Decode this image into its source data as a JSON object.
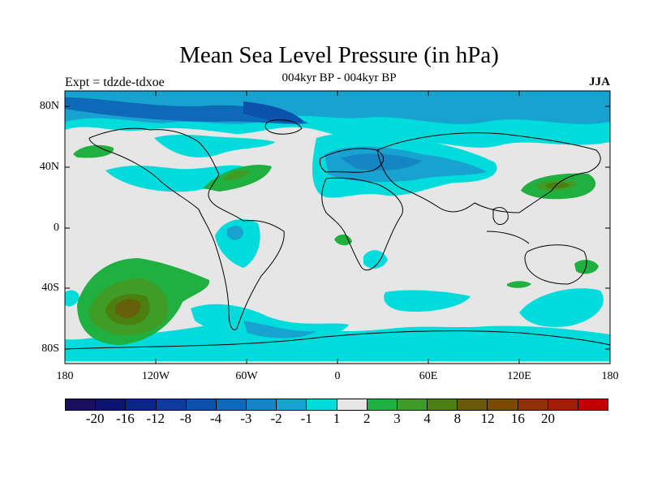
{
  "title": "Mean Sea Level Pressure (in hPa)",
  "subtitle": "004kyr BP - 004kyr BP",
  "left_label": "Expt = tdzde-tdxoe",
  "right_label": "JJA",
  "lat_ticks": [
    "80N",
    "40N",
    "0",
    "40S",
    "80S"
  ],
  "lon_ticks": [
    "180",
    "120W",
    "60W",
    "0",
    "60E",
    "120E",
    "180"
  ],
  "colorbar": {
    "colors": [
      "#1a0f5c",
      "#0b1470",
      "#0a2787",
      "#0b3c9e",
      "#0a52ab",
      "#0e6ab8",
      "#1486c4",
      "#18a2d0",
      "#00dcdc",
      "#e6e6e6",
      "#20b040",
      "#3f9d25",
      "#4b7f10",
      "#6a5a08",
      "#7a4a00",
      "#8c3206",
      "#a01e04",
      "#c20000"
    ],
    "labels": [
      "-20",
      "-16",
      "-12",
      "-8",
      "-4",
      "-3",
      "-2",
      "-1",
      "1",
      "2",
      "3",
      "4",
      "8",
      "12",
      "16",
      "20"
    ]
  }
}
